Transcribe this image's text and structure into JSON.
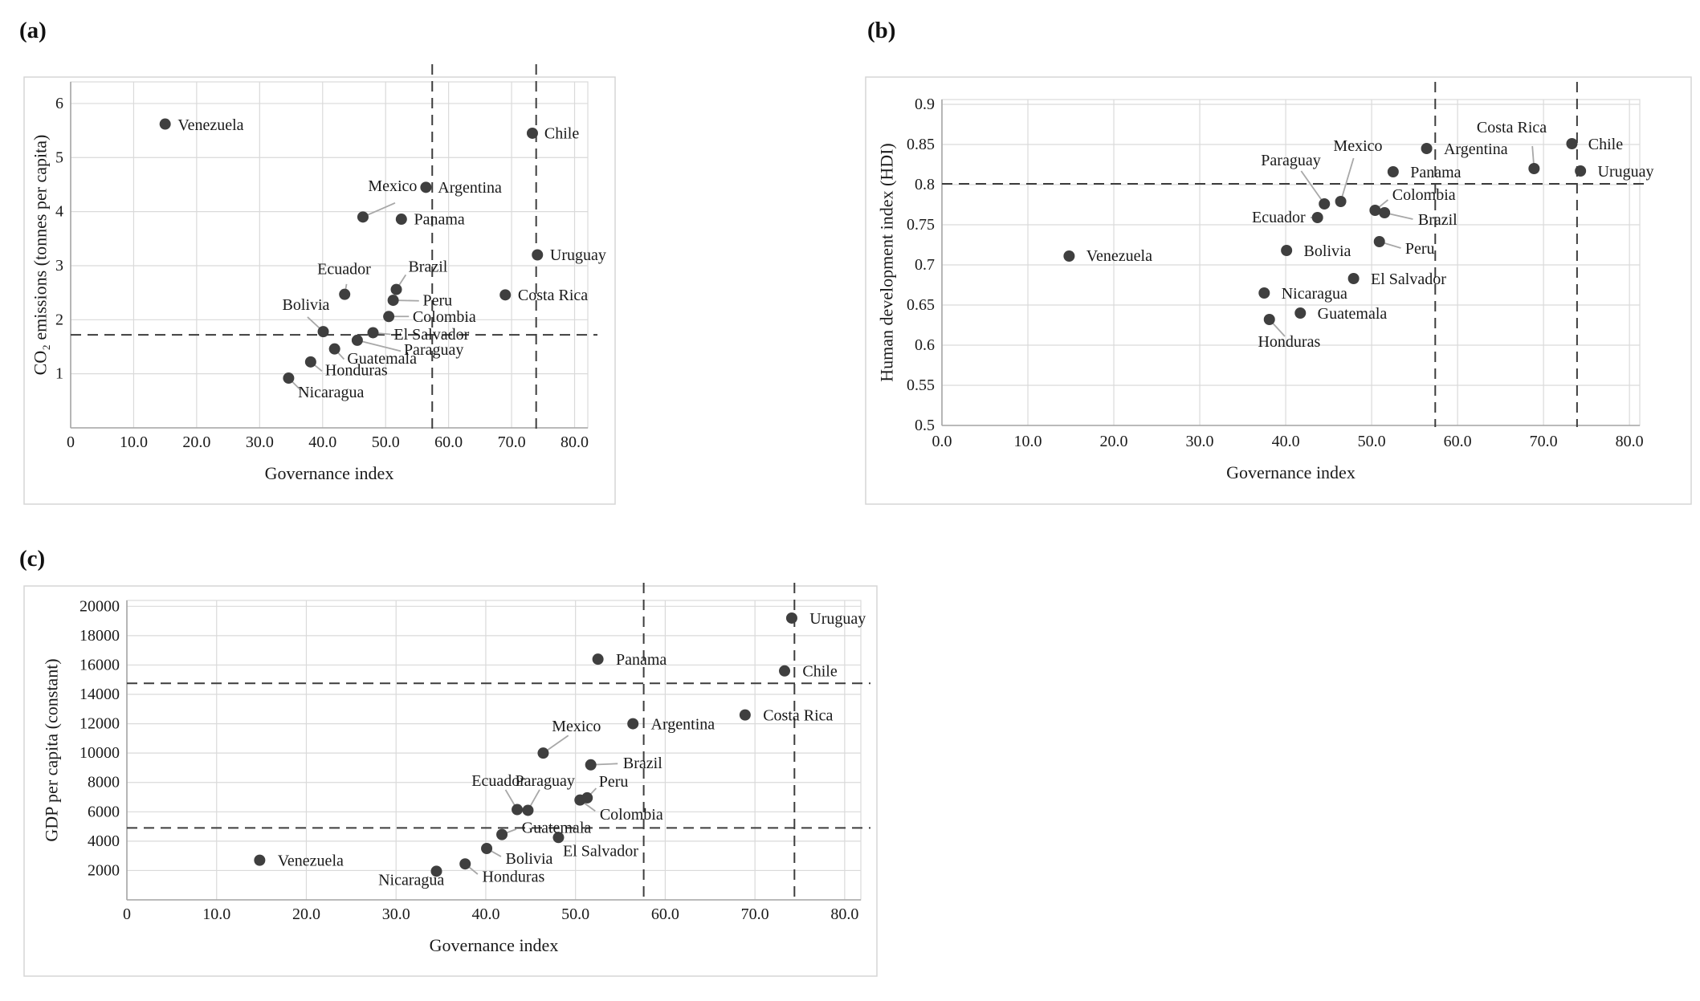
{
  "colors": {
    "background": "#ffffff",
    "panel_border": "#d6d6d6",
    "gridline": "#dadada",
    "axis_line": "#a6a6a6",
    "point_fill": "#3f3f3f",
    "dashed_line": "#3d3d3d",
    "leader_line": "#a8a8a8",
    "text": "#1a1a1a"
  },
  "chart_data": [
    {
      "type": "scatter",
      "tag": "(a)",
      "xlabel": "Governance index",
      "ylabel": "CO₂ emissions (tonnes per capita)",
      "xlim": [
        0,
        82.1
      ],
      "ylim": [
        0,
        6.4
      ],
      "x_ticks": {
        "values": [
          0,
          10,
          20,
          30,
          40,
          50,
          60,
          70,
          80
        ],
        "labels": [
          "0",
          "10.0",
          "20.0",
          "30.0",
          "40.0",
          "50.0",
          "60.0",
          "70.0",
          "80.0"
        ]
      },
      "y_ticks": {
        "values": [
          1,
          2,
          3,
          4,
          5,
          6
        ],
        "labels": [
          "1",
          "2",
          "3",
          "4",
          "5",
          "6"
        ]
      },
      "dashed_h": [
        1.72
      ],
      "dashed_v": [
        57.4,
        73.9
      ],
      "grid": true,
      "legend": "none",
      "points": [
        {
          "country": "Venezuela",
          "x": 15.0,
          "y": 5.62,
          "label": {
            "x": 17.0,
            "y": 5.6,
            "anchor": "start"
          },
          "leader": null
        },
        {
          "country": "Chile",
          "x": 73.3,
          "y": 5.45,
          "label": {
            "x": 75.2,
            "y": 5.44,
            "anchor": "start"
          },
          "leader": null
        },
        {
          "country": "Argentina",
          "x": 56.4,
          "y": 4.45,
          "label": {
            "x": 58.3,
            "y": 4.44,
            "anchor": "start"
          },
          "leader": null
        },
        {
          "country": "Mexico",
          "x": 46.4,
          "y": 3.9,
          "label": {
            "x": 55.0,
            "y": 4.47,
            "anchor": "end"
          },
          "leader": {
            "x": 51.5,
            "y": 4.16
          }
        },
        {
          "country": "Panama",
          "x": 52.5,
          "y": 3.86,
          "label": {
            "x": 54.5,
            "y": 3.85,
            "anchor": "start"
          },
          "leader": null
        },
        {
          "country": "Uruguay",
          "x": 74.1,
          "y": 3.2,
          "label": {
            "x": 76.1,
            "y": 3.19,
            "anchor": "start"
          },
          "leader": null
        },
        {
          "country": "Brazil",
          "x": 51.7,
          "y": 2.56,
          "label": {
            "x": 53.6,
            "y": 2.98,
            "anchor": "start"
          },
          "leader": {
            "x": 53.2,
            "y": 2.83
          }
        },
        {
          "country": "Ecuador",
          "x": 43.5,
          "y": 2.47,
          "label": {
            "x": 43.4,
            "y": 2.93,
            "anchor": "middle"
          },
          "leader": {
            "x": 43.8,
            "y": 2.66
          }
        },
        {
          "country": "Peru",
          "x": 51.2,
          "y": 2.36,
          "label": {
            "x": 55.9,
            "y": 2.35,
            "anchor": "start"
          },
          "leader": {
            "x": 55.3,
            "y": 2.35
          }
        },
        {
          "country": "Costa Rica",
          "x": 69.0,
          "y": 2.46,
          "label": {
            "x": 71.0,
            "y": 2.45,
            "anchor": "start"
          },
          "leader": null
        },
        {
          "country": "Colombia",
          "x": 50.5,
          "y": 2.06,
          "label": {
            "x": 54.3,
            "y": 2.05,
            "anchor": "start"
          },
          "leader": {
            "x": 53.7,
            "y": 2.06
          }
        },
        {
          "country": "Bolivia",
          "x": 40.1,
          "y": 1.78,
          "label": {
            "x": 33.6,
            "y": 2.27,
            "anchor": "start"
          },
          "leader": {
            "x": 37.6,
            "y": 2.05
          }
        },
        {
          "country": "El Salvador",
          "x": 48.0,
          "y": 1.76,
          "label": {
            "x": 51.3,
            "y": 1.72,
            "anchor": "start"
          },
          "leader": {
            "x": 50.8,
            "y": 1.73
          }
        },
        {
          "country": "Paraguay",
          "x": 45.5,
          "y": 1.62,
          "label": {
            "x": 52.9,
            "y": 1.44,
            "anchor": "start"
          },
          "leader": {
            "x": 52.4,
            "y": 1.42
          }
        },
        {
          "country": "Guatemala",
          "x": 41.9,
          "y": 1.46,
          "label": {
            "x": 43.9,
            "y": 1.28,
            "anchor": "start"
          },
          "leader": {
            "x": 43.4,
            "y": 1.27
          }
        },
        {
          "country": "Honduras",
          "x": 38.1,
          "y": 1.22,
          "label": {
            "x": 40.4,
            "y": 1.06,
            "anchor": "start"
          },
          "leader": {
            "x": 39.9,
            "y": 1.05
          }
        },
        {
          "country": "Nicaragua",
          "x": 34.6,
          "y": 0.92,
          "label": {
            "x": 36.1,
            "y": 0.65,
            "anchor": "start"
          },
          "leader": {
            "x": 36.5,
            "y": 0.7
          }
        }
      ]
    },
    {
      "type": "scatter",
      "tag": "(b)",
      "xlabel": "Governance index",
      "ylabel": "Human development index (HDI)",
      "xlim": [
        0,
        81.2
      ],
      "ylim": [
        0.5,
        0.906
      ],
      "x_ticks": {
        "values": [
          0,
          10,
          20,
          30,
          40,
          50,
          60,
          70,
          80
        ],
        "labels": [
          "0.0",
          "10.0",
          "20.0",
          "30.0",
          "40.0",
          "50.0",
          "60.0",
          "70.0",
          "80.0"
        ]
      },
      "y_ticks": {
        "values": [
          0.5,
          0.55,
          0.6,
          0.65,
          0.7,
          0.75,
          0.8,
          0.85,
          0.9
        ],
        "labels": [
          "0.5",
          "0.55",
          "0.6",
          "0.65",
          "0.7",
          "0.75",
          "0.8",
          "0.85",
          "0.9"
        ]
      },
      "dashed_h": [
        0.801
      ],
      "dashed_v": [
        57.4,
        73.9
      ],
      "grid": true,
      "legend": "none",
      "points": [
        {
          "country": "Venezuela",
          "x": 14.8,
          "y": 0.711,
          "label": {
            "x": 16.8,
            "y": 0.711,
            "anchor": "start"
          },
          "leader": null
        },
        {
          "country": "Chile",
          "x": 73.3,
          "y": 0.851,
          "label": {
            "x": 75.2,
            "y": 0.85,
            "anchor": "start"
          },
          "leader": null
        },
        {
          "country": "Uruguay",
          "x": 74.3,
          "y": 0.817,
          "label": {
            "x": 76.3,
            "y": 0.816,
            "anchor": "start"
          },
          "leader": null
        },
        {
          "country": "Costa Rica",
          "x": 68.9,
          "y": 0.82,
          "label": {
            "x": 66.3,
            "y": 0.871,
            "anchor": "middle"
          },
          "leader": {
            "x": 68.7,
            "y": 0.848
          }
        },
        {
          "country": "Argentina",
          "x": 56.4,
          "y": 0.845,
          "label": {
            "x": 58.4,
            "y": 0.844,
            "anchor": "start"
          },
          "leader": null
        },
        {
          "country": "Panama",
          "x": 52.5,
          "y": 0.816,
          "label": {
            "x": 54.5,
            "y": 0.815,
            "anchor": "start"
          },
          "leader": null
        },
        {
          "country": "Mexico",
          "x": 46.4,
          "y": 0.779,
          "label": {
            "x": 48.4,
            "y": 0.848,
            "anchor": "middle"
          },
          "leader": {
            "x": 47.9,
            "y": 0.833
          }
        },
        {
          "country": "Paraguay",
          "x": 44.5,
          "y": 0.776,
          "label": {
            "x": 40.6,
            "y": 0.83,
            "anchor": "middle"
          },
          "leader": {
            "x": 41.8,
            "y": 0.817
          }
        },
        {
          "country": "Ecuador",
          "x": 43.7,
          "y": 0.759,
          "label": {
            "x": 42.3,
            "y": 0.759,
            "anchor": "end"
          },
          "leader": {
            "x": 42.9,
            "y": 0.759
          }
        },
        {
          "country": "Colombia",
          "x": 50.4,
          "y": 0.768,
          "label": {
            "x": 52.4,
            "y": 0.787,
            "anchor": "start"
          },
          "leader": {
            "x": 51.9,
            "y": 0.781
          }
        },
        {
          "country": "Brazil",
          "x": 51.5,
          "y": 0.765,
          "label": {
            "x": 55.4,
            "y": 0.756,
            "anchor": "start"
          },
          "leader": {
            "x": 54.8,
            "y": 0.757
          }
        },
        {
          "country": "Peru",
          "x": 50.9,
          "y": 0.729,
          "label": {
            "x": 53.9,
            "y": 0.72,
            "anchor": "start"
          },
          "leader": {
            "x": 53.4,
            "y": 0.721
          }
        },
        {
          "country": "Bolivia",
          "x": 40.1,
          "y": 0.718,
          "label": {
            "x": 42.1,
            "y": 0.717,
            "anchor": "start"
          },
          "leader": null
        },
        {
          "country": "El Salvador",
          "x": 47.9,
          "y": 0.683,
          "label": {
            "x": 49.9,
            "y": 0.682,
            "anchor": "start"
          },
          "leader": null
        },
        {
          "country": "Nicaragua",
          "x": 37.5,
          "y": 0.665,
          "label": {
            "x": 39.5,
            "y": 0.664,
            "anchor": "start"
          },
          "leader": null
        },
        {
          "country": "Guatemala",
          "x": 41.7,
          "y": 0.64,
          "label": {
            "x": 43.7,
            "y": 0.639,
            "anchor": "start"
          },
          "leader": null
        },
        {
          "country": "Honduras",
          "x": 38.1,
          "y": 0.632,
          "label": {
            "x": 40.4,
            "y": 0.604,
            "anchor": "middle"
          },
          "leader": {
            "x": 39.9,
            "y": 0.611
          }
        }
      ]
    },
    {
      "type": "scatter",
      "tag": "(c)",
      "xlabel": "Governance index",
      "ylabel": "GDP per capita (constant)",
      "xlim": [
        0,
        81.8
      ],
      "ylim": [
        0,
        20400
      ],
      "x_ticks": {
        "values": [
          0,
          10,
          20,
          30,
          40,
          50,
          60,
          70,
          80
        ],
        "labels": [
          "0",
          "10.0",
          "20.0",
          "30.0",
          "40.0",
          "50.0",
          "60.0",
          "70.0",
          "80.0"
        ]
      },
      "y_ticks": {
        "values": [
          2000,
          4000,
          6000,
          8000,
          10000,
          12000,
          14000,
          16000,
          18000,
          20000
        ],
        "labels": [
          "2000",
          "4000",
          "6000",
          "8000",
          "10000",
          "12000",
          "14000",
          "16000",
          "18000",
          "20000"
        ]
      },
      "dashed_h": [
        14750,
        4900
      ],
      "dashed_v": [
        57.6,
        74.4
      ],
      "grid": true,
      "legend": "none",
      "points": [
        {
          "country": "Uruguay",
          "x": 74.1,
          "y": 19200,
          "label": {
            "x": 76.1,
            "y": 19150,
            "anchor": "start"
          },
          "leader": null
        },
        {
          "country": "Panama",
          "x": 52.5,
          "y": 16400,
          "label": {
            "x": 54.5,
            "y": 16350,
            "anchor": "start"
          },
          "leader": null
        },
        {
          "country": "Chile",
          "x": 73.3,
          "y": 15600,
          "label": {
            "x": 75.3,
            "y": 15550,
            "anchor": "start"
          },
          "leader": null
        },
        {
          "country": "Costa Rica",
          "x": 68.9,
          "y": 12600,
          "label": {
            "x": 70.9,
            "y": 12550,
            "anchor": "start"
          },
          "leader": null
        },
        {
          "country": "Argentina",
          "x": 56.4,
          "y": 12000,
          "label": {
            "x": 58.4,
            "y": 11950,
            "anchor": "start"
          },
          "leader": null
        },
        {
          "country": "Mexico",
          "x": 46.4,
          "y": 10000,
          "label": {
            "x": 50.1,
            "y": 11800,
            "anchor": "middle"
          },
          "leader": {
            "x": 49.2,
            "y": 11200
          }
        },
        {
          "country": "Brazil",
          "x": 51.7,
          "y": 9200,
          "label": {
            "x": 55.3,
            "y": 9300,
            "anchor": "start"
          },
          "leader": {
            "x": 54.7,
            "y": 9280
          }
        },
        {
          "country": "Ecuador",
          "x": 43.5,
          "y": 6150,
          "label": {
            "x": 41.4,
            "y": 8100,
            "anchor": "middle"
          },
          "leader": {
            "x": 42.2,
            "y": 7500
          }
        },
        {
          "country": "Paraguay",
          "x": 44.7,
          "y": 6100,
          "label": {
            "x": 46.6,
            "y": 8100,
            "anchor": "middle"
          },
          "leader": {
            "x": 46.0,
            "y": 7500
          }
        },
        {
          "country": "Peru",
          "x": 51.3,
          "y": 6950,
          "label": {
            "x": 52.6,
            "y": 8050,
            "anchor": "start"
          },
          "leader": {
            "x": 52.3,
            "y": 7600
          }
        },
        {
          "country": "Colombia",
          "x": 50.5,
          "y": 6800,
          "label": {
            "x": 52.7,
            "y": 5800,
            "anchor": "start"
          },
          "leader": {
            "x": 52.2,
            "y": 6050
          }
        },
        {
          "country": "Guatemala",
          "x": 41.8,
          "y": 4450,
          "label": {
            "x": 44.0,
            "y": 4900,
            "anchor": "start"
          },
          "leader": {
            "x": 43.4,
            "y": 4820
          }
        },
        {
          "country": "El Salvador",
          "x": 48.1,
          "y": 4250,
          "label": {
            "x": 48.6,
            "y": 3300,
            "anchor": "start"
          },
          "leader": null
        },
        {
          "country": "Bolivia",
          "x": 40.1,
          "y": 3500,
          "label": {
            "x": 42.2,
            "y": 2800,
            "anchor": "start"
          },
          "leader": {
            "x": 41.7,
            "y": 2950
          }
        },
        {
          "country": "Venezuela",
          "x": 14.8,
          "y": 2700,
          "label": {
            "x": 16.8,
            "y": 2650,
            "anchor": "start"
          },
          "leader": null
        },
        {
          "country": "Honduras",
          "x": 37.7,
          "y": 2450,
          "label": {
            "x": 39.6,
            "y": 1550,
            "anchor": "start"
          },
          "leader": {
            "x": 39.1,
            "y": 1750
          }
        },
        {
          "country": "Nicaragua",
          "x": 34.5,
          "y": 1950,
          "label": {
            "x": 31.7,
            "y": 1350,
            "anchor": "middle"
          },
          "leader": null
        }
      ]
    }
  ]
}
